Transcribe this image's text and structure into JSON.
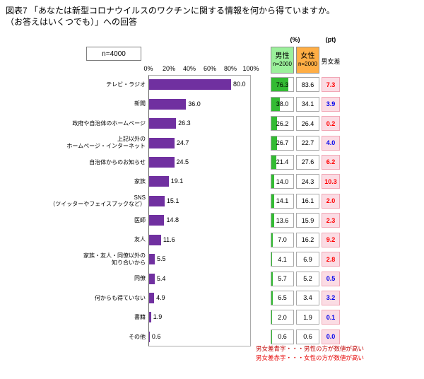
{
  "title": {
    "line1": "図表7 「あなたは新型コロナウイルスのワクチンに関する情報を何から得ていますか。",
    "line2": "（お答えはいくつでも）」への回答"
  },
  "sample_box": "n=4000",
  "chart_data": {
    "type": "bar",
    "title": "図表7 「あなたは新型コロナウイルスのワクチンに関する情報を何から得ていますか。（お答えはいくつでも）」への回答",
    "orientation": "horizontal",
    "xlabel": "",
    "ylabel": "",
    "xlim": [
      0,
      100
    ],
    "x_ticks": [
      "0%",
      "20%",
      "40%",
      "60%",
      "80%",
      "100%"
    ],
    "sample_size": "n=4000",
    "categories": [
      "テレビ・ラジオ",
      "新聞",
      "政府や自治体のホームページ",
      "上記以外のホームページ・インターネット",
      "自治体からのお知らせ",
      "家族",
      "SNS（ツイッターやフェイスブックなど）",
      "医師",
      "友人",
      "家族・友人・同僚以外の知り合いから",
      "同僚",
      "何からも得ていない",
      "書籍",
      "その他"
    ],
    "category_lines": [
      [
        "テレビ・ラジオ"
      ],
      [
        "新聞"
      ],
      [
        "政府や自治体のホームページ"
      ],
      [
        "上記以外の",
        "ホームページ・インターネット"
      ],
      [
        "自治体からのお知らせ"
      ],
      [
        "家族"
      ],
      [
        "SNS",
        "（ツイッターやフェイスブックなど）"
      ],
      [
        "医師"
      ],
      [
        "友人"
      ],
      [
        "家族・友人・同僚以外の",
        "知り合いから"
      ],
      [
        "同僚"
      ],
      [
        "何からも得ていない"
      ],
      [
        "書籍"
      ],
      [
        "その他"
      ]
    ],
    "values": [
      80.0,
      36.0,
      26.3,
      24.7,
      24.5,
      19.1,
      15.1,
      14.8,
      11.6,
      5.5,
      5.4,
      4.9,
      1.9,
      0.6
    ],
    "series": [
      {
        "name": "男性",
        "n": "n=2000",
        "values": [
          76.3,
          38.0,
          26.2,
          26.7,
          21.4,
          14.0,
          14.1,
          13.6,
          7.0,
          4.1,
          5.7,
          6.5,
          2.0,
          0.6
        ]
      },
      {
        "name": "女性",
        "n": "n=2000",
        "values": [
          83.6,
          34.1,
          26.4,
          22.7,
          27.6,
          24.3,
          16.1,
          15.9,
          16.2,
          6.9,
          5.2,
          3.4,
          1.9,
          0.6
        ]
      }
    ],
    "diff_pt": {
      "label": "男女差",
      "unit": "(pt)",
      "values": [
        7.3,
        3.9,
        0.2,
        4.0,
        6.2,
        10.3,
        2.0,
        2.3,
        9.2,
        2.8,
        0.5,
        3.2,
        0.1,
        0.0
      ],
      "colors": [
        "red",
        "blue",
        "red",
        "blue",
        "red",
        "red",
        "red",
        "red",
        "red",
        "red",
        "blue",
        "blue",
        "blue",
        "blue"
      ]
    }
  },
  "table": {
    "pct_header": "(%)",
    "pt_header": "(pt)",
    "male_label": "男性",
    "male_n": "n=2000",
    "female_label": "女性",
    "female_n": "n=2000",
    "diff_label": "男女差"
  },
  "notes": {
    "line1": "男女差青字・・・男性の方が数値が高い",
    "line2": "男女差赤字・・・女性の方が数値が高い"
  },
  "colors": {
    "bar": "#7030A0",
    "male_header_bg": "#9BF09B",
    "female_header_bg": "#FFAE45",
    "male_bar_fill": "#33BB33",
    "diff_cell_bg": "#FBDCE4",
    "diff_cell_border": "#F1A7B6",
    "blue": "#0000EE",
    "red": "#FF0000",
    "note1": "#C00000",
    "note2": "#E60000"
  }
}
